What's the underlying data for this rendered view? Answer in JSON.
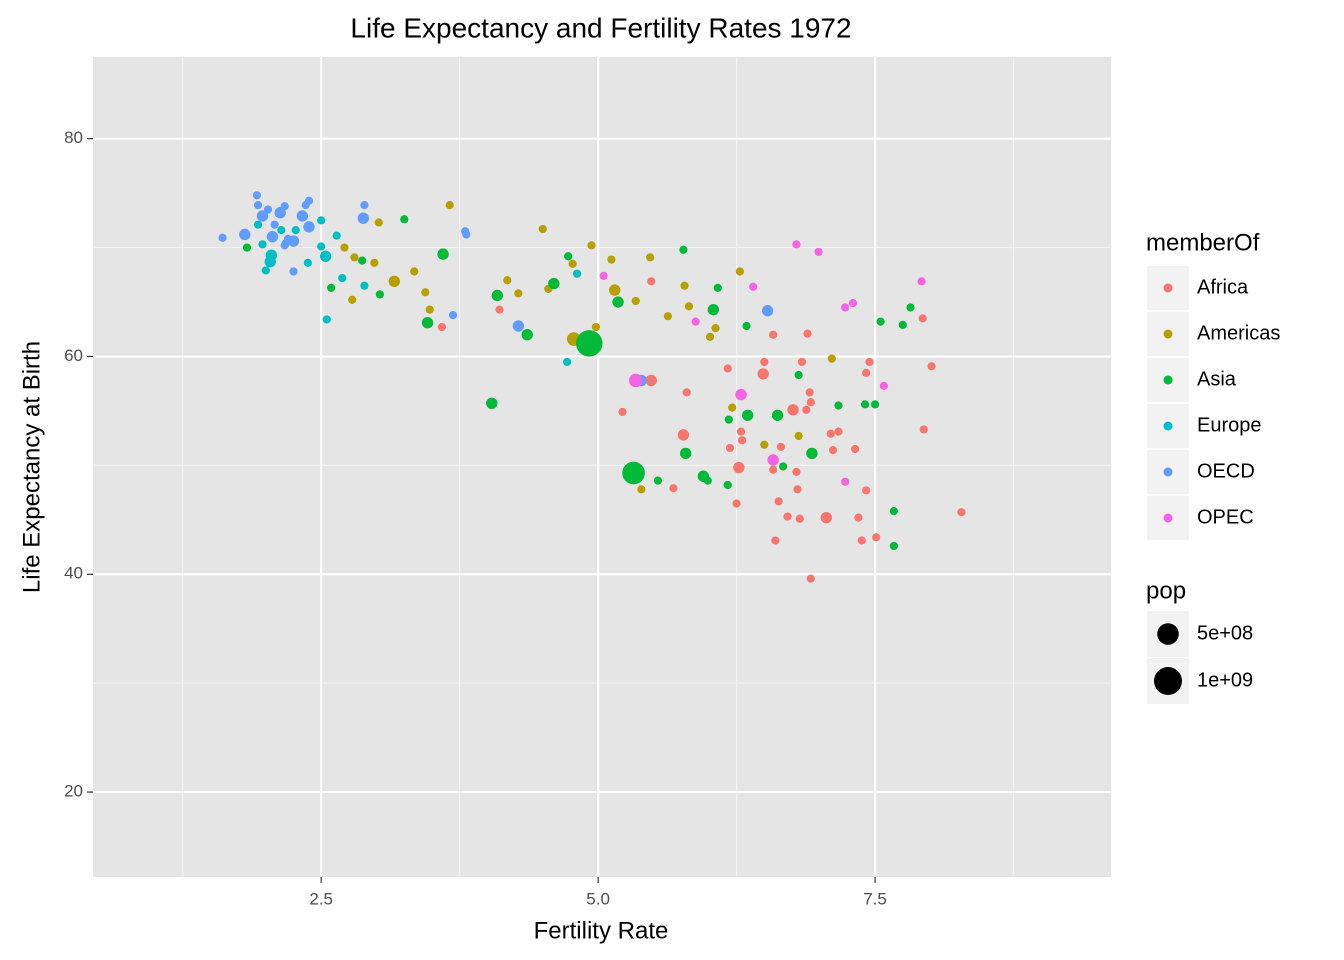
{
  "chart_data": {
    "type": "scatter",
    "title": "Life Expectancy and Fertility Rates 1972",
    "x_label": "Fertility Rate",
    "y_label": "Life Expectancy at Birth",
    "legend_title": "memberOf",
    "size_legend_title": "pop",
    "size_legend": [
      {
        "value": 500000000,
        "label": "5e+08"
      },
      {
        "value": 1000000000,
        "label": "1e+09"
      }
    ],
    "xlim": [
      0.44,
      9.63
    ],
    "ylim": [
      12.2,
      87.5
    ],
    "xticks": [
      2.5,
      {
        "value": 5,
        "label": "5.0"
      },
      7.5
    ],
    "yticks": [
      20,
      40,
      60,
      80
    ],
    "x_minor_ticks": [
      1.25,
      3.75,
      6.25,
      8.75
    ],
    "y_minor_ticks": [
      30,
      50,
      70
    ],
    "grid": true,
    "series": [
      {
        "name": "Africa",
        "color": "#F8766D",
        "x": [
          3.59,
          4.11,
          5.48,
          5.48,
          5.8,
          5.77,
          5.22,
          5.68,
          6.17,
          6.19,
          6.29,
          6.3,
          6.27,
          6.25,
          6.5,
          6.49,
          6.58,
          6.58,
          6.6,
          6.63,
          6.65,
          6.71,
          6.76,
          6.79,
          6.8,
          6.82,
          6.84,
          6.88,
          6.89,
          6.91,
          6.92,
          6.92,
          7.06,
          7.1,
          7.12,
          7.17,
          7.32,
          7.35,
          7.38,
          7.42,
          7.42,
          7.45,
          7.51,
          7.93,
          7.94,
          8.01,
          8.28
        ],
        "y": [
          62.7,
          64.3,
          66.9,
          57.8,
          56.7,
          52.8,
          54.9,
          47.9,
          58.9,
          51.6,
          53.1,
          52.3,
          49.8,
          46.5,
          59.5,
          58.4,
          62.0,
          49.6,
          43.1,
          46.7,
          51.7,
          45.3,
          55.1,
          49.4,
          47.8,
          45.1,
          59.5,
          55.1,
          62.1,
          56.7,
          55.8,
          39.6,
          45.2,
          52.9,
          51.4,
          53.1,
          51.5,
          45.2,
          43.1,
          58.5,
          47.7,
          59.5,
          43.4,
          63.5,
          53.3,
          59.1,
          45.7
        ],
        "pop": [
          10000000,
          10000000,
          10000000,
          60000000,
          10000000,
          60000000,
          10000000,
          10000000,
          10000000,
          10000000,
          10000000,
          10000000,
          60000000,
          10000000,
          10000000,
          60000000,
          10000000,
          10000000,
          10000000,
          10000000,
          10000000,
          10000000,
          60000000,
          10000000,
          10000000,
          10000000,
          10000000,
          10000000,
          10000000,
          10000000,
          10000000,
          10000000,
          60000000,
          10000000,
          10000000,
          10000000,
          10000000,
          10000000,
          10000000,
          10000000,
          10000000,
          10000000,
          10000000,
          10000000,
          10000000,
          10000000,
          10000000
        ]
      },
      {
        "name": "Americas",
        "color": "#B79F00",
        "x": [
          2.71,
          2.8,
          2.78,
          3.02,
          2.98,
          3.16,
          3.34,
          3.44,
          3.48,
          3.66,
          4.18,
          4.28,
          4.5,
          4.55,
          4.77,
          4.78,
          4.94,
          4.98,
          5.12,
          5.15,
          5.34,
          5.47,
          5.63,
          5.78,
          5.82,
          6.01,
          6.06,
          5.39,
          6.21,
          6.28,
          6.5,
          6.81,
          7.11
        ],
        "y": [
          70.0,
          69.1,
          65.2,
          72.3,
          68.6,
          66.9,
          67.8,
          65.9,
          64.3,
          73.9,
          67.0,
          65.8,
          71.7,
          66.2,
          68.5,
          61.6,
          70.2,
          62.7,
          68.9,
          66.1,
          65.1,
          69.1,
          63.7,
          66.5,
          64.6,
          61.8,
          62.6,
          47.8,
          55.3,
          67.8,
          51.9,
          52.7,
          59.8
        ],
        "pop": [
          10000000,
          10000000,
          10000000,
          10000000,
          10000000,
          60000000,
          10000000,
          10000000,
          10000000,
          10000000,
          10000000,
          10000000,
          10000000,
          10000000,
          10000000,
          120000000,
          10000000,
          10000000,
          10000000,
          60000000,
          10000000,
          10000000,
          10000000,
          10000000,
          10000000,
          10000000,
          10000000,
          10000000,
          10000000,
          10000000,
          10000000,
          10000000,
          10000000
        ]
      },
      {
        "name": "Asia",
        "color": "#00BA38",
        "x": [
          1.83,
          2.59,
          2.87,
          3.03,
          3.25,
          3.46,
          3.6,
          4.04,
          4.09,
          4.36,
          4.6,
          4.73,
          4.92,
          5.18,
          5.32,
          5.54,
          5.77,
          5.79,
          5.95,
          5.99,
          6.04,
          6.08,
          6.17,
          6.18,
          6.34,
          6.35,
          6.62,
          6.67,
          6.81,
          6.93,
          7.17,
          7.41,
          7.5,
          7.55,
          7.67,
          7.67,
          7.75,
          7.82
        ],
        "y": [
          70.0,
          66.3,
          68.8,
          65.7,
          72.6,
          63.1,
          69.4,
          55.7,
          65.6,
          62.0,
          66.7,
          69.2,
          61.2,
          65.0,
          49.3,
          48.6,
          69.8,
          51.1,
          49.0,
          48.6,
          64.3,
          66.3,
          48.2,
          54.2,
          62.8,
          54.6,
          54.6,
          49.9,
          58.3,
          51.1,
          55.5,
          55.6,
          55.6,
          63.2,
          45.8,
          42.6,
          62.9,
          64.5
        ],
        "pop": [
          10000000,
          10000000,
          10000000,
          10000000,
          10000000,
          60000000,
          60000000,
          60000000,
          60000000,
          60000000,
          60000000,
          10000000,
          870000000,
          60000000,
          570000000,
          10000000,
          10000000,
          60000000,
          60000000,
          10000000,
          60000000,
          10000000,
          10000000,
          10000000,
          10000000,
          60000000,
          60000000,
          10000000,
          10000000,
          60000000,
          10000000,
          10000000,
          10000000,
          10000000,
          10000000,
          10000000,
          10000000,
          10000000
        ]
      },
      {
        "name": "Europe",
        "color": "#00BFC4",
        "x": [
          1.93,
          1.97,
          2.0,
          2.04,
          2.05,
          2.14,
          2.27,
          2.5,
          2.5,
          2.38,
          2.54,
          2.64,
          2.69,
          2.55,
          2.89,
          4.72,
          4.81,
          2.18
        ],
        "y": [
          72.1,
          70.3,
          67.9,
          68.7,
          69.3,
          71.6,
          71.6,
          72.5,
          70.1,
          68.6,
          69.2,
          71.1,
          67.2,
          63.4,
          66.5,
          59.5,
          67.6,
          70.4
        ],
        "pop": [
          10000000,
          10000000,
          10000000,
          60000000,
          60000000,
          10000000,
          10000000,
          10000000,
          10000000,
          10000000,
          60000000,
          10000000,
          10000000,
          10000000,
          10000000,
          10000000,
          10000000,
          10000000
        ]
      },
      {
        "name": "OECD",
        "color": "#619CFF",
        "x": [
          1.61,
          1.81,
          1.92,
          1.93,
          1.97,
          2.02,
          2.06,
          2.08,
          2.13,
          2.17,
          2.17,
          2.2,
          2.25,
          2.25,
          2.33,
          2.36,
          2.39,
          2.39,
          2.88,
          2.89,
          3.69,
          3.8,
          3.81,
          4.28,
          5.39,
          6.53
        ],
        "y": [
          70.9,
          71.2,
          74.8,
          73.9,
          72.9,
          73.5,
          71.0,
          72.1,
          73.2,
          73.8,
          70.2,
          70.8,
          70.6,
          67.8,
          72.9,
          73.9,
          74.3,
          71.9,
          72.7,
          73.9,
          63.8,
          71.5,
          71.2,
          62.8,
          57.8,
          64.2
        ],
        "pop": [
          10000000,
          60000000,
          10000000,
          10000000,
          60000000,
          10000000,
          60000000,
          10000000,
          60000000,
          10000000,
          10000000,
          10000000,
          60000000,
          10000000,
          60000000,
          10000000,
          10000000,
          60000000,
          60000000,
          10000000,
          10000000,
          10000000,
          10000000,
          60000000,
          60000000,
          60000000
        ]
      },
      {
        "name": "OPEC",
        "color": "#F564E3",
        "x": [
          5.05,
          5.34,
          5.88,
          6.29,
          6.4,
          6.58,
          6.79,
          6.99,
          7.23,
          7.3,
          7.23,
          7.58,
          7.92
        ],
        "y": [
          67.4,
          57.8,
          63.2,
          56.5,
          66.4,
          50.5,
          70.3,
          69.6,
          64.5,
          64.9,
          48.5,
          57.3,
          66.9
        ],
        "pop": [
          10000000,
          120000000,
          10000000,
          60000000,
          10000000,
          60000000,
          10000000,
          10000000,
          10000000,
          10000000,
          10000000,
          10000000,
          10000000
        ]
      }
    ]
  }
}
